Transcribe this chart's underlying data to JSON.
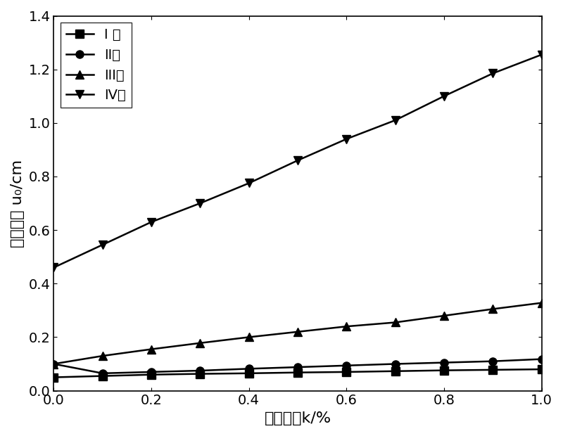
{
  "x": [
    0.0,
    0.1,
    0.2,
    0.3,
    0.4,
    0.5,
    0.6,
    0.7,
    0.8,
    0.9,
    1.0
  ],
  "series": {
    "I": [
      0.05,
      0.055,
      0.06,
      0.063,
      0.065,
      0.068,
      0.07,
      0.073,
      0.076,
      0.078,
      0.08
    ],
    "II": [
      0.1,
      0.065,
      0.07,
      0.075,
      0.082,
      0.088,
      0.094,
      0.1,
      0.105,
      0.11,
      0.118
    ],
    "III": [
      0.1,
      0.13,
      0.155,
      0.178,
      0.2,
      0.22,
      0.24,
      0.255,
      0.28,
      0.305,
      0.328
    ],
    "IV": [
      0.46,
      0.545,
      0.63,
      0.7,
      0.775,
      0.86,
      0.94,
      1.01,
      1.1,
      1.185,
      1.255
    ]
  },
  "labels": [
    "I 类",
    "II类",
    "III类",
    "IV类"
  ],
  "markers": [
    "s",
    "o",
    "^",
    "v"
  ],
  "xlabel": "扩容系数k/%",
  "ylabel": "洞壁位移 u₀/cm",
  "xlim": [
    0.0,
    1.0
  ],
  "ylim": [
    0.0,
    1.4
  ],
  "yticks": [
    0.0,
    0.2,
    0.4,
    0.6,
    0.8,
    1.0,
    1.2,
    1.4
  ],
  "xticks": [
    0.0,
    0.2,
    0.4,
    0.6,
    0.8,
    1.0
  ],
  "legend_loc": "upper left",
  "line_color": "#000000",
  "background_color": "#ffffff",
  "fontsize_label": 16,
  "fontsize_tick": 14,
  "fontsize_legend": 14,
  "linewidth": 1.8,
  "markersize": 8
}
